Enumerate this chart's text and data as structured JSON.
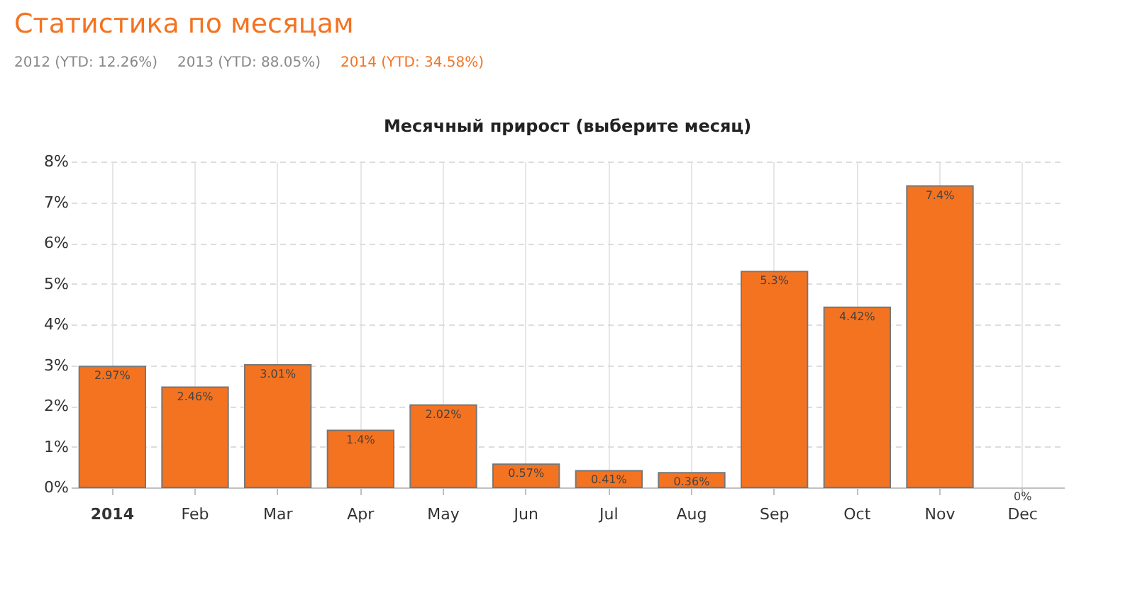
{
  "chart_data": {
    "type": "bar",
    "title": "Статистика по месяцам",
    "subtitle": "Месячный прирост (выберите месяц)",
    "annotations": [
      "2012 (YTD: 12.26%)",
      "2013 (YTD: 88.05%)",
      "2014 (YTD: 34.58%)"
    ],
    "categories": [
      "2014",
      "Feb",
      "Mar",
      "Apr",
      "May",
      "Jun",
      "Jul",
      "Aug",
      "Sep",
      "Oct",
      "Nov",
      "Dec"
    ],
    "values": [
      2.97,
      2.46,
      3.01,
      1.4,
      2.02,
      0.57,
      0.41,
      0.36,
      5.3,
      4.42,
      7.4,
      0
    ],
    "value_labels": [
      "2.97%",
      "2.46%",
      "3.01%",
      "1.4%",
      "2.02%",
      "0.57%",
      "0.41%",
      "0.36%",
      "5.3%",
      "4.42%",
      "7.4%",
      "0%"
    ],
    "color": "#f47321",
    "ylim": [
      0,
      8
    ],
    "yticks": [
      {
        "value": 0,
        "label": "0%"
      },
      {
        "value": 1,
        "label": "1%"
      },
      {
        "value": 2,
        "label": "2%"
      },
      {
        "value": 3,
        "label": "3%"
      },
      {
        "value": 4,
        "label": "4%"
      },
      {
        "value": 5,
        "label": "5%"
      },
      {
        "value": 6,
        "label": "6%"
      },
      {
        "value": 7,
        "label": "7%"
      },
      {
        "value": 8,
        "label": "8%"
      }
    ],
    "grid": true
  }
}
